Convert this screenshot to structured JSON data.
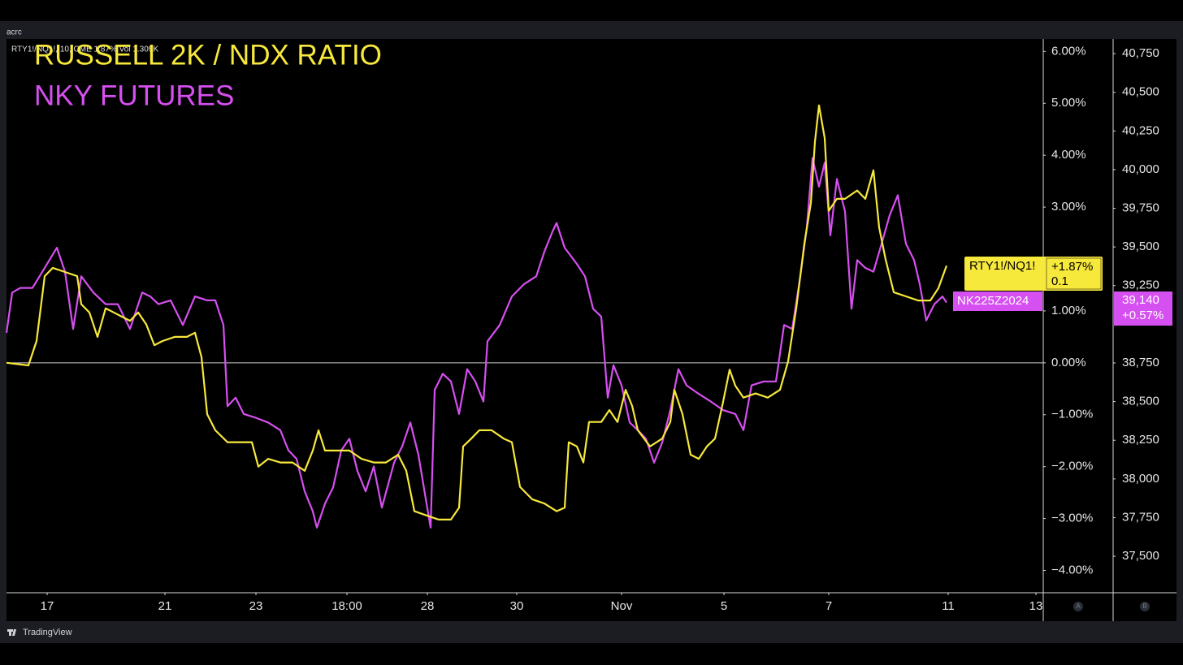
{
  "ui": {
    "workspace": "acrc",
    "header": "RTY1!/NQ1!, 10, CME 1.87% Vol 1.309K",
    "brand": "TradingView",
    "axis_buttons": [
      "A",
      "B"
    ],
    "tag_ratio_symbol": "RTY1!/NQ1!",
    "tag_ratio_change": "+1.87%",
    "tag_ratio_value": "0.1",
    "tag_nky_symbol": "NK225Z2024",
    "tag_nky_price": "39,140",
    "tag_nky_change": "+0.57%"
  },
  "chart_data": {
    "type": "line",
    "xlim": [
      0,
      1276
    ],
    "xticks": [
      {
        "value": 50,
        "label": "17"
      },
      {
        "value": 195,
        "label": "21"
      },
      {
        "value": 307,
        "label": "23"
      },
      {
        "value": 419,
        "label": "18:00"
      },
      {
        "value": 518,
        "label": "28"
      },
      {
        "value": 628,
        "label": "30"
      },
      {
        "value": 757,
        "label": "Nov"
      },
      {
        "value": 883,
        "label": "5"
      },
      {
        "value": 1012,
        "label": "7"
      },
      {
        "value": 1159,
        "label": "11"
      },
      {
        "value": 1267,
        "label": "13"
      }
    ],
    "ylim": [
      -4.43,
      6.24
    ],
    "yticks": [
      {
        "value": 6,
        "label": "6.00%"
      },
      {
        "value": 5,
        "label": "5.00%"
      },
      {
        "value": 4,
        "label": "4.00%"
      },
      {
        "value": 3,
        "label": "3.00%"
      },
      {
        "value": 1,
        "label": "1.00%"
      },
      {
        "value": 0,
        "label": "0.00%"
      },
      {
        "value": -1,
        "label": "−1.00%"
      },
      {
        "value": -2,
        "label": "−2.00%"
      },
      {
        "value": -3,
        "label": "−3.00%"
      },
      {
        "value": -4,
        "label": "−4.00%"
      }
    ],
    "y2lim": [
      37264,
      40845
    ],
    "y2ticks": [
      {
        "value": 40750,
        "label": "40,750"
      },
      {
        "value": 40500,
        "label": "40,500"
      },
      {
        "value": 40250,
        "label": "40,250"
      },
      {
        "value": 40000,
        "label": "40,000"
      },
      {
        "value": 39750,
        "label": "39,750"
      },
      {
        "value": 39500,
        "label": "39,500"
      },
      {
        "value": 39250,
        "label": "39,250"
      },
      {
        "value": 38750,
        "label": "38,750"
      },
      {
        "value": 38500,
        "label": "38,500"
      },
      {
        "value": 38250,
        "label": "38,250"
      },
      {
        "value": 38000,
        "label": "38,000"
      },
      {
        "value": 37750,
        "label": "37,750"
      },
      {
        "value": 37500,
        "label": "37,500"
      }
    ],
    "zero_line": 0,
    "grid": false,
    "series": [
      {
        "name": "RUSSELL 2K / NDX RATIO",
        "color": "#f7e83c",
        "axis": "y",
        "x": [
          0,
          27,
          37,
          47,
          57,
          72,
          87,
          92,
          102,
          112,
          122,
          132,
          142,
          152,
          162,
          172,
          182,
          192,
          207,
          222,
          232,
          240,
          247,
          257,
          272,
          287,
          302,
          310,
          322,
          337,
          352,
          367,
          377,
          384,
          392,
          407,
          422,
          437,
          452,
          467,
          482,
          492,
          502,
          517,
          532,
          547,
          557,
          562,
          572,
          582,
          597,
          612,
          622,
          632,
          647,
          662,
          677,
          687,
          692,
          702,
          710,
          717,
          732,
          742,
          752,
          762,
          770,
          777,
          792,
          807,
          817,
          822,
          832,
          842,
          852,
          862,
          872,
          882,
          890,
          897,
          907,
          922,
          937,
          952,
          962,
          972,
          982,
          990,
          995,
          1000,
          1007,
          1012,
          1022,
          1032,
          1047,
          1057,
          1067,
          1074,
          1082,
          1092,
          1107,
          1122,
          1137,
          1147,
          1157
        ],
        "values": [
          0,
          -0.05,
          0.42,
          1.67,
          1.83,
          1.75,
          1.67,
          1.13,
          0.97,
          0.5,
          1.05,
          0.97,
          0.89,
          0.81,
          0.97,
          0.74,
          0.34,
          0.42,
          0.5,
          0.5,
          0.58,
          0.11,
          -0.99,
          -1.3,
          -1.53,
          -1.53,
          -1.53,
          -2.0,
          -1.85,
          -1.92,
          -1.92,
          -2.08,
          -1.69,
          -1.3,
          -1.69,
          -1.69,
          -1.69,
          -1.85,
          -1.92,
          -1.92,
          -1.77,
          -2.08,
          -2.86,
          -2.94,
          -3.02,
          -3.02,
          -2.79,
          -1.61,
          -1.46,
          -1.3,
          -1.3,
          -1.46,
          -1.53,
          -2.39,
          -2.63,
          -2.71,
          -2.86,
          -2.79,
          -1.53,
          -1.61,
          -1.92,
          -1.14,
          -1.14,
          -0.91,
          -1.14,
          -0.52,
          -0.83,
          -1.3,
          -1.61,
          -1.46,
          -1.14,
          -0.52,
          -0.99,
          -1.77,
          -1.85,
          -1.61,
          -1.46,
          -0.75,
          -0.13,
          -0.44,
          -0.67,
          -0.59,
          -0.67,
          -0.52,
          0.03,
          1.05,
          2.3,
          3.08,
          4.26,
          4.96,
          4.33,
          2.93,
          3.16,
          3.16,
          3.32,
          3.16,
          3.71,
          2.61,
          1.99,
          1.36,
          1.28,
          1.2,
          1.2,
          1.44,
          1.87
        ]
      },
      {
        "name": "NKY FUTURES",
        "color": "#d64ff0",
        "axis": "y2",
        "x": [
          0,
          7,
          17,
          32,
          47,
          62,
          72,
          82,
          92,
          107,
          122,
          137,
          152,
          167,
          177,
          187,
          202,
          217,
          232,
          247,
          257,
          267,
          272,
          282,
          292,
          307,
          322,
          337,
          347,
          357,
          367,
          377,
          382,
          392,
          402,
          412,
          422,
          432,
          442,
          452,
          462,
          477,
          487,
          497,
          507,
          517,
          522,
          527,
          537,
          547,
          557,
          567,
          577,
          587,
          592,
          607,
          622,
          637,
          652,
          662,
          672,
          677,
          687,
          702,
          712,
          722,
          732,
          740,
          747,
          757,
          767,
          777,
          787,
          797,
          807,
          817,
          827,
          837,
          852,
          867,
          882,
          897,
          907,
          917,
          932,
          947,
          957,
          967,
          977,
          985,
          992,
          1000,
          1007,
          1014,
          1022,
          1032,
          1040,
          1047,
          1057,
          1067,
          1077,
          1087,
          1097,
          1107,
          1117,
          1124,
          1132,
          1142,
          1152,
          1157
        ],
        "values": [
          38945,
          39205,
          39235,
          39235,
          39365,
          39495,
          39340,
          38970,
          39310,
          39205,
          39130,
          39130,
          38970,
          39205,
          39180,
          39130,
          39155,
          38995,
          39180,
          39155,
          39155,
          38995,
          38470,
          38525,
          38420,
          38395,
          38365,
          38315,
          38185,
          38130,
          37920,
          37790,
          37685,
          37840,
          37945,
          38185,
          38260,
          38050,
          37920,
          38080,
          37815,
          38105,
          38210,
          38365,
          38155,
          37840,
          37685,
          38575,
          38680,
          38630,
          38420,
          38710,
          38630,
          38500,
          38890,
          38995,
          39180,
          39260,
          39310,
          39470,
          39600,
          39655,
          39495,
          39390,
          39310,
          39100,
          39050,
          38525,
          38735,
          38605,
          38365,
          38315,
          38260,
          38105,
          38235,
          38445,
          38710,
          38605,
          38550,
          38500,
          38445,
          38420,
          38315,
          38605,
          38630,
          38630,
          38995,
          38970,
          39310,
          39625,
          40075,
          39890,
          40045,
          39575,
          39940,
          39730,
          39100,
          39415,
          39365,
          39340,
          39520,
          39705,
          39835,
          39520,
          39415,
          39260,
          39025,
          39130,
          39180,
          39140
        ]
      }
    ]
  }
}
